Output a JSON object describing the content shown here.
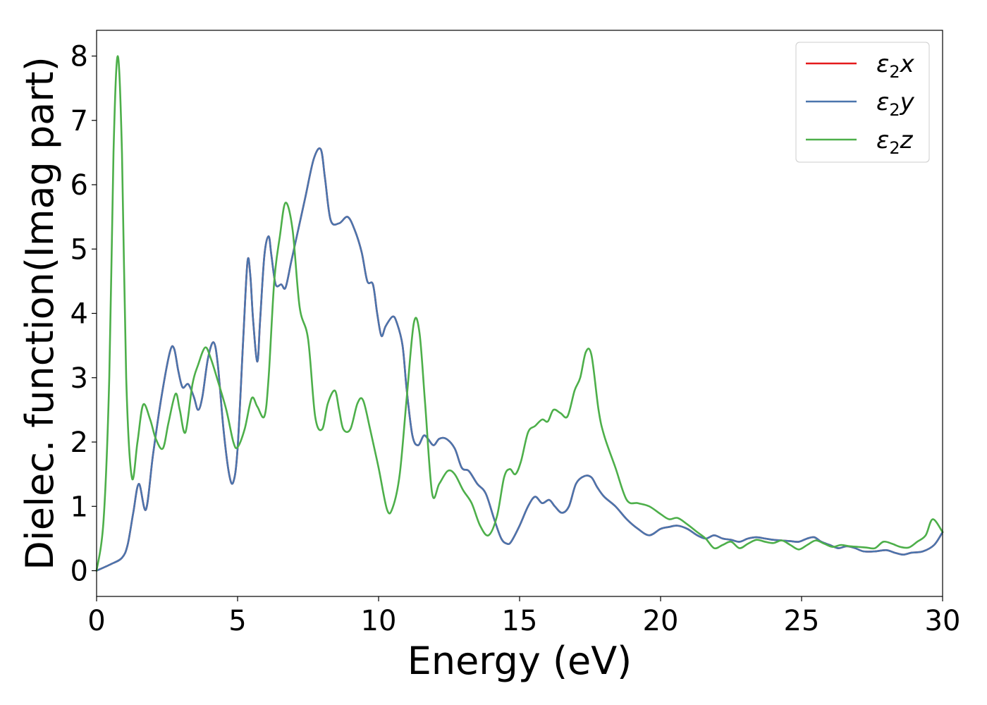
{
  "chart_data": {
    "type": "line",
    "title": "",
    "xlabel": "Energy (eV)",
    "ylabel": "Dielec. function(Imag part)",
    "xlim": [
      0,
      30
    ],
    "ylim": [
      -0.4,
      8.4
    ],
    "xticks": [
      0,
      5,
      10,
      15,
      20,
      25,
      30
    ],
    "yticks": [
      0,
      1,
      2,
      3,
      4,
      5,
      6,
      7,
      8
    ],
    "grid": false,
    "legend_position": "top-right",
    "series": [
      {
        "name": "ε₂x",
        "legend_base": "ε",
        "legend_sub": "2",
        "legend_suffix": "x",
        "color": "#e41a1c",
        "x": [
          0,
          0.5,
          0.9,
          1.1,
          1.3,
          1.5,
          1.75,
          2.0,
          2.3,
          2.6,
          2.75,
          2.9,
          3.05,
          3.25,
          3.45,
          3.6,
          3.75,
          3.95,
          4.15,
          4.3,
          4.5,
          4.7,
          4.85,
          5.0,
          5.2,
          5.35,
          5.45,
          5.55,
          5.7,
          5.8,
          5.95,
          6.1,
          6.2,
          6.35,
          6.55,
          6.7,
          6.9,
          7.1,
          7.4,
          7.7,
          7.95,
          8.1,
          8.3,
          8.6,
          8.9,
          9.15,
          9.4,
          9.6,
          9.8,
          9.95,
          10.1,
          10.25,
          10.5,
          10.65,
          10.85,
          11.0,
          11.2,
          11.4,
          11.6,
          11.75,
          11.95,
          12.15,
          12.4,
          12.7,
          12.95,
          13.2,
          13.5,
          13.8,
          14.1,
          14.35,
          14.55,
          14.7,
          15.0,
          15.3,
          15.55,
          15.8,
          16.05,
          16.25,
          16.5,
          16.75,
          17.0,
          17.3,
          17.55,
          17.75,
          18.0,
          18.4,
          18.8,
          19.2,
          19.6,
          20.0,
          20.3,
          20.6,
          20.95,
          21.3,
          21.6,
          21.9,
          22.2,
          22.5,
          22.8,
          23.1,
          23.4,
          23.7,
          24.0,
          24.3,
          24.6,
          24.9,
          25.2,
          25.45,
          25.7,
          26.0,
          26.3,
          26.6,
          26.9,
          27.2,
          27.6,
          28.0,
          28.3,
          28.6,
          28.9,
          29.3,
          29.7,
          30.0
        ],
        "y": [
          0.0,
          0.1,
          0.2,
          0.4,
          0.9,
          1.35,
          0.95,
          1.8,
          2.7,
          3.4,
          3.45,
          3.1,
          2.85,
          2.9,
          2.7,
          2.5,
          2.7,
          3.3,
          3.55,
          3.2,
          2.2,
          1.5,
          1.38,
          1.9,
          3.6,
          4.8,
          4.6,
          3.9,
          3.25,
          3.9,
          4.9,
          5.2,
          4.9,
          4.45,
          4.45,
          4.4,
          4.8,
          5.2,
          5.8,
          6.4,
          6.55,
          6.1,
          5.45,
          5.4,
          5.5,
          5.3,
          4.95,
          4.5,
          4.45,
          4.0,
          3.65,
          3.8,
          3.95,
          3.85,
          3.5,
          2.8,
          2.1,
          1.95,
          2.1,
          2.05,
          1.95,
          2.05,
          2.05,
          1.9,
          1.6,
          1.55,
          1.35,
          1.2,
          0.8,
          0.5,
          0.42,
          0.45,
          0.7,
          1.0,
          1.15,
          1.05,
          1.1,
          1.0,
          0.9,
          1.0,
          1.35,
          1.47,
          1.45,
          1.3,
          1.15,
          1.0,
          0.8,
          0.65,
          0.55,
          0.65,
          0.68,
          0.7,
          0.65,
          0.55,
          0.5,
          0.55,
          0.5,
          0.48,
          0.45,
          0.5,
          0.52,
          0.5,
          0.48,
          0.47,
          0.46,
          0.45,
          0.5,
          0.52,
          0.45,
          0.4,
          0.35,
          0.38,
          0.35,
          0.3,
          0.3,
          0.32,
          0.28,
          0.25,
          0.28,
          0.3,
          0.4,
          0.6
        ]
      },
      {
        "name": "ε₂y",
        "legend_base": "ε",
        "legend_sub": "2",
        "legend_suffix": "y",
        "color": "#4a75ad",
        "x": [
          0,
          0.5,
          0.9,
          1.1,
          1.3,
          1.5,
          1.75,
          2.0,
          2.3,
          2.6,
          2.75,
          2.9,
          3.05,
          3.25,
          3.45,
          3.6,
          3.75,
          3.95,
          4.15,
          4.3,
          4.5,
          4.7,
          4.85,
          5.0,
          5.2,
          5.35,
          5.45,
          5.55,
          5.7,
          5.8,
          5.95,
          6.1,
          6.2,
          6.35,
          6.55,
          6.7,
          6.9,
          7.1,
          7.4,
          7.7,
          7.95,
          8.1,
          8.3,
          8.6,
          8.9,
          9.15,
          9.4,
          9.6,
          9.8,
          9.95,
          10.1,
          10.25,
          10.5,
          10.65,
          10.85,
          11.0,
          11.2,
          11.4,
          11.6,
          11.75,
          11.95,
          12.15,
          12.4,
          12.7,
          12.95,
          13.2,
          13.5,
          13.8,
          14.1,
          14.35,
          14.55,
          14.7,
          15.0,
          15.3,
          15.55,
          15.8,
          16.05,
          16.25,
          16.5,
          16.75,
          17.0,
          17.3,
          17.55,
          17.75,
          18.0,
          18.4,
          18.8,
          19.2,
          19.6,
          20.0,
          20.3,
          20.6,
          20.95,
          21.3,
          21.6,
          21.9,
          22.2,
          22.5,
          22.8,
          23.1,
          23.4,
          23.7,
          24.0,
          24.3,
          24.6,
          24.9,
          25.2,
          25.45,
          25.7,
          26.0,
          26.3,
          26.6,
          26.9,
          27.2,
          27.6,
          28.0,
          28.3,
          28.6,
          28.9,
          29.3,
          29.7,
          30.0
        ],
        "y": [
          0.0,
          0.1,
          0.2,
          0.4,
          0.9,
          1.35,
          0.95,
          1.8,
          2.7,
          3.4,
          3.45,
          3.1,
          2.85,
          2.9,
          2.7,
          2.5,
          2.7,
          3.3,
          3.55,
          3.2,
          2.2,
          1.5,
          1.38,
          1.9,
          3.6,
          4.8,
          4.6,
          3.9,
          3.25,
          3.9,
          4.9,
          5.2,
          4.9,
          4.45,
          4.45,
          4.4,
          4.8,
          5.2,
          5.8,
          6.4,
          6.55,
          6.1,
          5.45,
          5.4,
          5.5,
          5.3,
          4.95,
          4.5,
          4.45,
          4.0,
          3.65,
          3.8,
          3.95,
          3.85,
          3.5,
          2.8,
          2.1,
          1.95,
          2.1,
          2.05,
          1.95,
          2.05,
          2.05,
          1.9,
          1.6,
          1.55,
          1.35,
          1.2,
          0.8,
          0.5,
          0.42,
          0.45,
          0.7,
          1.0,
          1.15,
          1.05,
          1.1,
          1.0,
          0.9,
          1.0,
          1.35,
          1.47,
          1.45,
          1.3,
          1.15,
          1.0,
          0.8,
          0.65,
          0.55,
          0.65,
          0.68,
          0.7,
          0.65,
          0.55,
          0.5,
          0.55,
          0.5,
          0.48,
          0.45,
          0.5,
          0.52,
          0.5,
          0.48,
          0.47,
          0.46,
          0.45,
          0.5,
          0.52,
          0.45,
          0.4,
          0.35,
          0.38,
          0.35,
          0.3,
          0.3,
          0.32,
          0.28,
          0.25,
          0.28,
          0.3,
          0.4,
          0.6
        ]
      },
      {
        "name": "ε₂z",
        "legend_base": "ε",
        "legend_sub": "2",
        "legend_suffix": "z",
        "color": "#4daf4a",
        "x": [
          0,
          0.25,
          0.45,
          0.6,
          0.75,
          0.9,
          1.05,
          1.25,
          1.45,
          1.65,
          1.9,
          2.1,
          2.35,
          2.55,
          2.8,
          2.95,
          3.15,
          3.4,
          3.6,
          3.85,
          4.05,
          4.3,
          4.6,
          4.85,
          5.0,
          5.25,
          5.5,
          5.7,
          5.95,
          6.1,
          6.3,
          6.5,
          6.7,
          6.95,
          7.2,
          7.5,
          7.75,
          8.0,
          8.2,
          8.45,
          8.6,
          8.75,
          9.0,
          9.25,
          9.45,
          9.7,
          10.0,
          10.3,
          10.5,
          10.75,
          11.0,
          11.25,
          11.45,
          11.65,
          11.9,
          12.15,
          12.45,
          12.7,
          13.0,
          13.3,
          13.6,
          13.9,
          14.2,
          14.45,
          14.65,
          14.85,
          15.05,
          15.3,
          15.55,
          15.8,
          16.0,
          16.2,
          16.45,
          16.7,
          16.95,
          17.15,
          17.35,
          17.55,
          17.8,
          18.0,
          18.4,
          18.8,
          19.2,
          19.6,
          20.0,
          20.3,
          20.6,
          20.95,
          21.3,
          21.6,
          21.9,
          22.2,
          22.5,
          22.8,
          23.1,
          23.4,
          23.7,
          24.0,
          24.3,
          24.6,
          24.9,
          25.2,
          25.5,
          25.8,
          26.1,
          26.4,
          26.7,
          27.0,
          27.3,
          27.6,
          27.9,
          28.2,
          28.5,
          28.8,
          29.1,
          29.4,
          29.65,
          30.0
        ],
        "y": [
          0.0,
          0.8,
          3.0,
          6.5,
          8.0,
          6.5,
          3.0,
          1.45,
          2.0,
          2.58,
          2.35,
          2.05,
          1.9,
          2.3,
          2.75,
          2.5,
          2.15,
          2.9,
          3.2,
          3.47,
          3.3,
          2.95,
          2.5,
          2.0,
          1.92,
          2.2,
          2.68,
          2.55,
          2.4,
          3.0,
          4.5,
          5.2,
          5.72,
          5.3,
          4.1,
          3.6,
          2.4,
          2.2,
          2.6,
          2.8,
          2.5,
          2.2,
          2.2,
          2.6,
          2.65,
          2.2,
          1.6,
          0.95,
          0.98,
          1.5,
          2.7,
          3.85,
          3.7,
          2.6,
          1.2,
          1.35,
          1.55,
          1.5,
          1.25,
          1.05,
          0.7,
          0.55,
          0.85,
          1.45,
          1.58,
          1.5,
          1.7,
          2.15,
          2.25,
          2.35,
          2.32,
          2.5,
          2.45,
          2.4,
          2.8,
          3.0,
          3.4,
          3.35,
          2.5,
          2.1,
          1.6,
          1.1,
          1.05,
          1.0,
          0.88,
          0.8,
          0.82,
          0.72,
          0.6,
          0.5,
          0.35,
          0.4,
          0.45,
          0.35,
          0.42,
          0.48,
          0.45,
          0.43,
          0.47,
          0.4,
          0.33,
          0.4,
          0.47,
          0.42,
          0.37,
          0.4,
          0.38,
          0.37,
          0.36,
          0.35,
          0.45,
          0.42,
          0.37,
          0.36,
          0.45,
          0.55,
          0.8,
          0.6
        ]
      }
    ]
  }
}
